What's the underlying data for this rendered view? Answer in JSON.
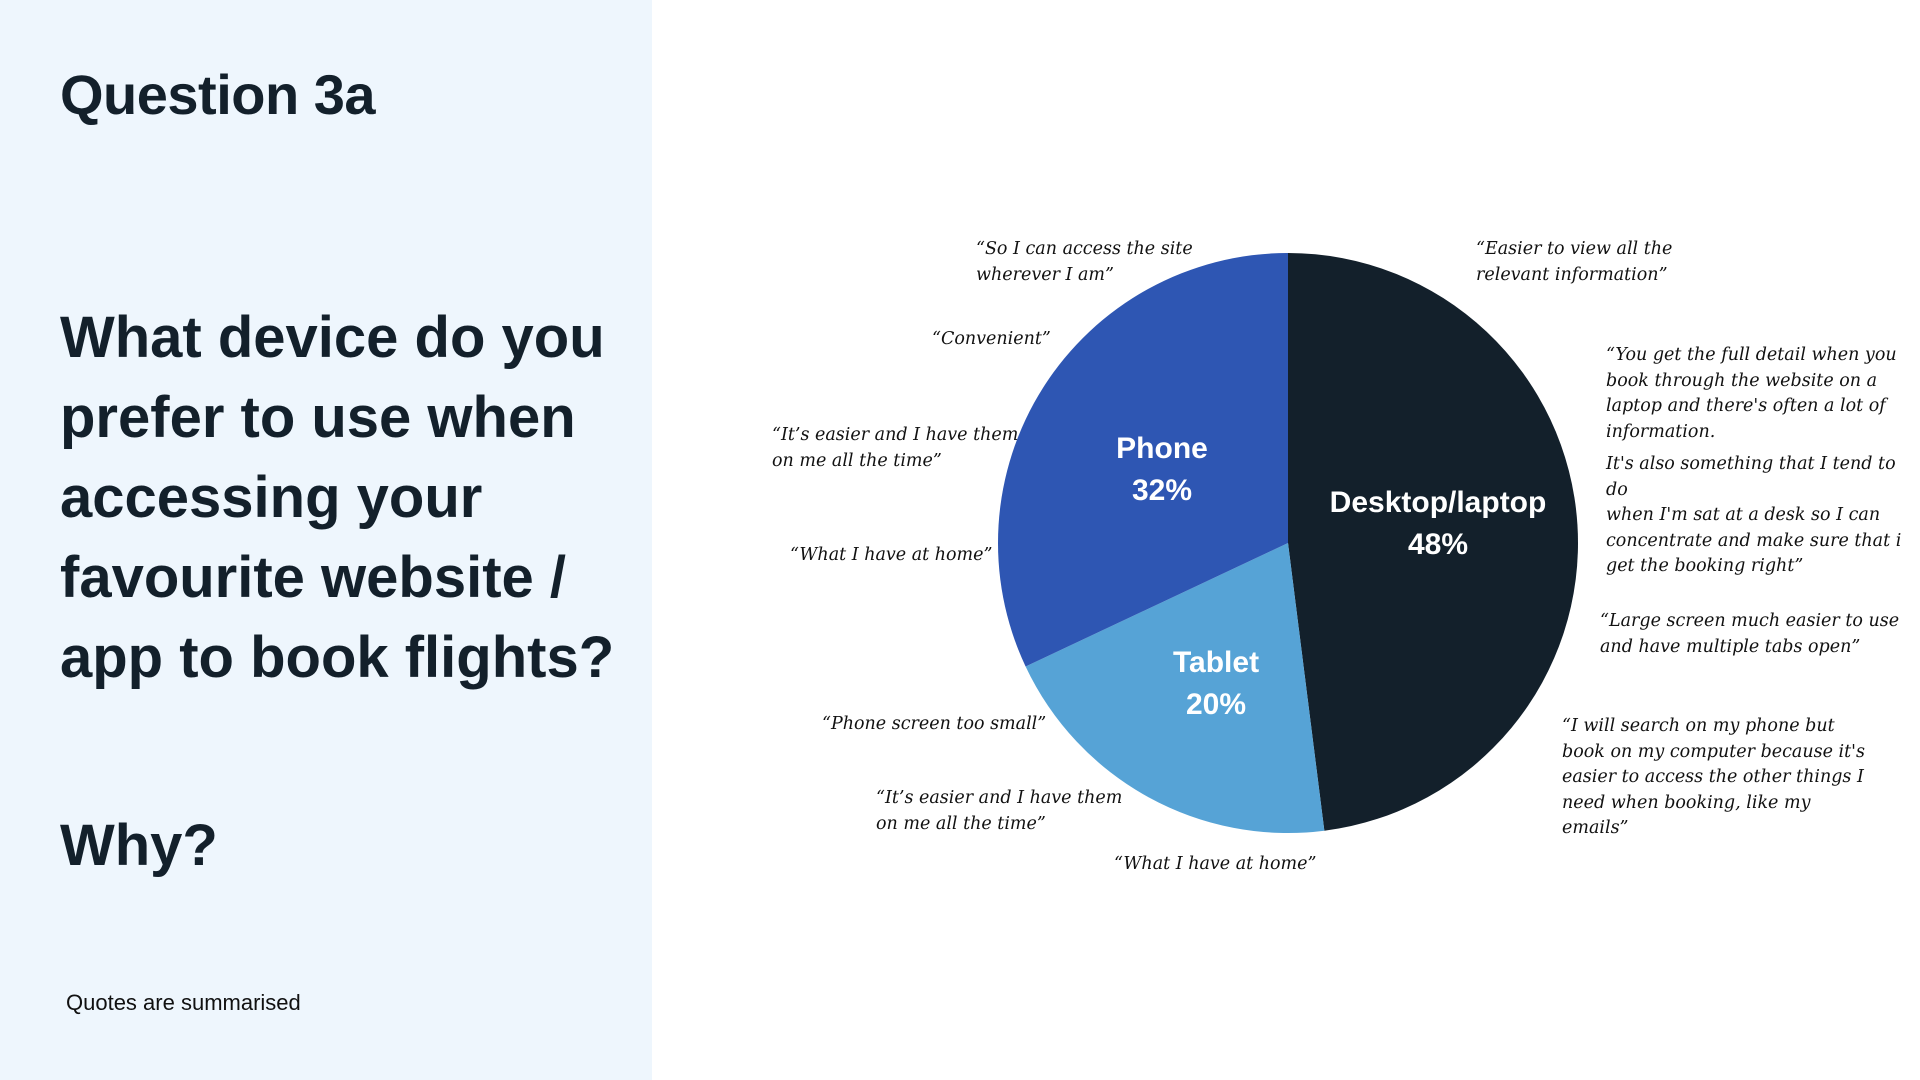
{
  "left": {
    "heading": "Question 3a",
    "question": "What device do you prefer to use when accessing your favourite website / app to book flights?",
    "why": "Why?",
    "footnote": "Quotes are summarised"
  },
  "colors": {
    "panel_bg": "#eef6fd",
    "desktop": "#13202b",
    "phone": "#2e56b3",
    "tablet": "#56a3d6"
  },
  "chart_data": {
    "type": "pie",
    "slices": [
      {
        "label": "Desktop/laptop",
        "value": 48,
        "display": "48%",
        "color": "#13202b"
      },
      {
        "label": "Tablet",
        "value": 20,
        "display": "20%",
        "color": "#56a3d6"
      },
      {
        "label": "Phone",
        "value": 32,
        "display": "32%",
        "color": "#2e56b3"
      }
    ]
  },
  "quotes": {
    "desktop": [
      "“Easier to view all the\nrelevant information”",
      "“You get the full detail when you\nbook through the website on a\nlaptop and there's often a lot of\ninformation.",
      "It's also something that I tend to do\nwhen I'm sat at a desk so I can\nconcentrate and make sure that i\nget the booking right”",
      "“Large screen much easier to use\nand have multiple tabs open”",
      "“I will search on my phone but\nbook on my computer because it's\neasier to access the other things I\nneed when booking, like my\nemails”"
    ],
    "phone": [
      "“So I can access the site\nwherever I am”",
      "“Convenient”",
      "“It’s easier and I have them\non me all the time”",
      "“What I have at home”"
    ],
    "tablet": [
      "“Phone screen too small”",
      "“It’s easier and I have them\non me all the time”",
      "“What I have at home”"
    ]
  }
}
